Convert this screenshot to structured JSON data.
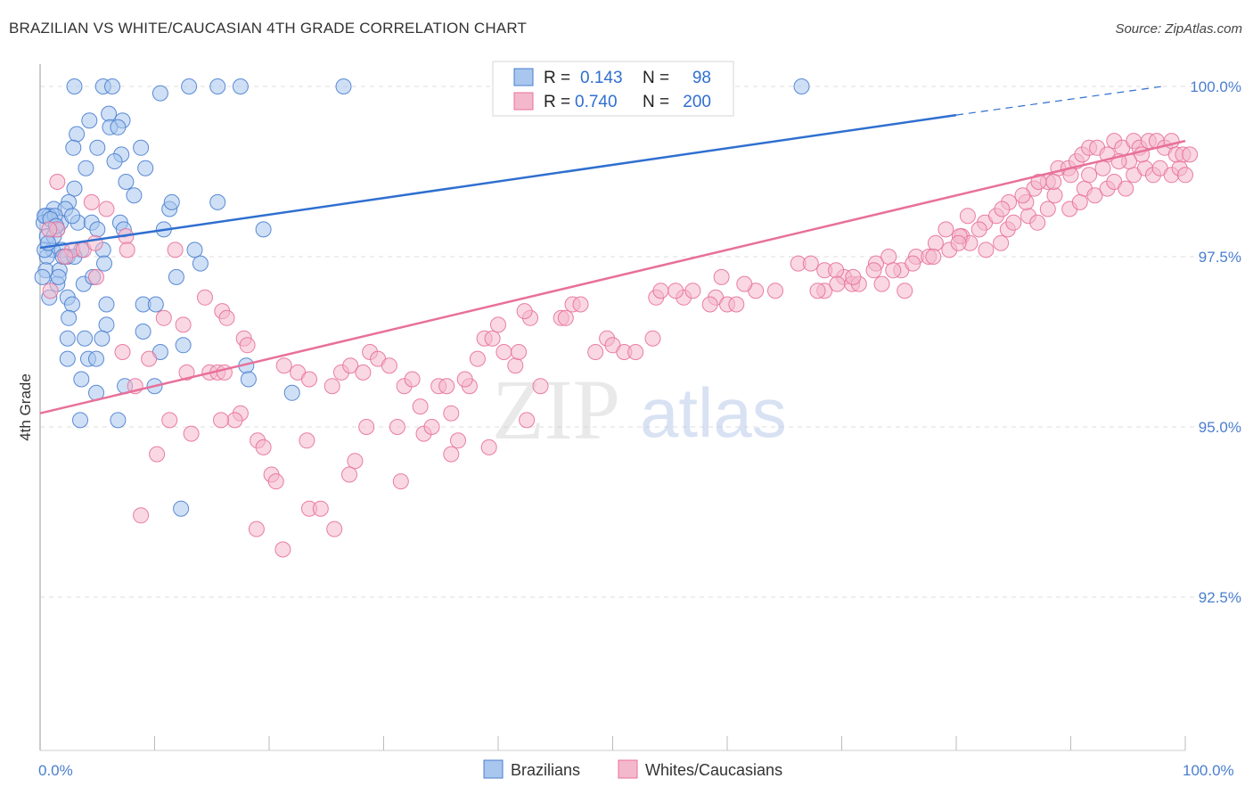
{
  "title": "BRAZILIAN VS WHITE/CAUCASIAN 4TH GRADE CORRELATION CHART",
  "source": "Source: ZipAtlas.com",
  "watermark": {
    "zip": "ZIP",
    "atlas": "atlas"
  },
  "colors": {
    "blue": "#4a7ecf",
    "blue_fill": "#a8c6ee",
    "blue_line": "#2f6fd0",
    "pink": "#e8709a",
    "pink_fill": "#f4b8cc",
    "grid": "#dddddd",
    "axis": "#bbbbbb"
  },
  "legend": {
    "rows": [
      {
        "r_label": "R =",
        "r_value": "0.143",
        "n_label": "N =",
        "n_value": "98"
      },
      {
        "r_label": "R =",
        "r_value": "0.740",
        "n_label": "N =",
        "n_value": "200"
      }
    ]
  },
  "bottom_legend": [
    "Brazilians",
    "Whites/Caucasians"
  ],
  "chart_data": {
    "type": "scatter",
    "title": "BRAZILIAN VS WHITE/CAUCASIAN 4TH GRADE CORRELATION CHART",
    "xlabel": "",
    "ylabel": "4th Grade",
    "xlim": [
      0,
      100
    ],
    "ylim": [
      90.0,
      100.3
    ],
    "x_tick_labels": [
      "0.0%",
      "100.0%"
    ],
    "y_ticks": [
      92.5,
      95.0,
      97.5,
      100.0
    ],
    "y_tick_labels": [
      "92.5%",
      "95.0%",
      "97.5%",
      "100.0%"
    ],
    "grid": true,
    "series": [
      {
        "name": "Brazilians",
        "r": 0.143,
        "n": 98,
        "trend": {
          "x0": 0,
          "y0": 97.63,
          "x1": 80,
          "y1": 99.58,
          "dash_to_x": 98,
          "dash_to_y": 100.0
        },
        "points": [
          [
            3,
            100
          ],
          [
            5.5,
            100
          ],
          [
            6.3,
            100
          ],
          [
            10.5,
            99.9
          ],
          [
            13,
            100
          ],
          [
            15.5,
            100
          ],
          [
            17.5,
            100
          ],
          [
            26.5,
            100
          ],
          [
            66.5,
            100
          ],
          [
            6,
            99.6
          ],
          [
            4.3,
            99.5
          ],
          [
            7.2,
            99.5
          ],
          [
            6.1,
            99.4
          ],
          [
            6.8,
            99.4
          ],
          [
            3.2,
            99.3
          ],
          [
            2.9,
            99.1
          ],
          [
            5,
            99.1
          ],
          [
            8.8,
            99.1
          ],
          [
            7.1,
            99.0
          ],
          [
            6.5,
            98.9
          ],
          [
            4,
            98.8
          ],
          [
            9.2,
            98.8
          ],
          [
            7.5,
            98.6
          ],
          [
            3,
            98.5
          ],
          [
            8.2,
            98.4
          ],
          [
            2.5,
            98.3
          ],
          [
            1.2,
            98.2
          ],
          [
            0.5,
            98.1
          ],
          [
            2.2,
            98.2
          ],
          [
            7,
            98.0
          ],
          [
            11.3,
            98.2
          ],
          [
            11.5,
            98.3
          ],
          [
            15.5,
            98.3
          ],
          [
            0.8,
            98.1
          ],
          [
            0.3,
            98.0
          ],
          [
            1.5,
            97.9
          ],
          [
            1.8,
            98.0
          ],
          [
            3.3,
            98.0
          ],
          [
            4.5,
            98.0
          ],
          [
            5,
            97.9
          ],
          [
            7.3,
            97.9
          ],
          [
            10.8,
            97.9
          ],
          [
            19.5,
            97.9
          ],
          [
            1.1,
            97.6
          ],
          [
            1.9,
            97.6
          ],
          [
            3.6,
            97.6
          ],
          [
            5.5,
            97.6
          ],
          [
            0.6,
            97.5
          ],
          [
            2.4,
            97.5
          ],
          [
            5.6,
            97.4
          ],
          [
            13.5,
            97.6
          ],
          [
            0.5,
            97.3
          ],
          [
            1.7,
            97.3
          ],
          [
            11.9,
            97.2
          ],
          [
            14,
            97.4
          ],
          [
            1.5,
            97.1
          ],
          [
            3.8,
            97.1
          ],
          [
            4.6,
            97.2
          ],
          [
            0.8,
            96.9
          ],
          [
            2.4,
            96.9
          ],
          [
            2.8,
            96.8
          ],
          [
            5.8,
            96.8
          ],
          [
            9,
            96.8
          ],
          [
            10.1,
            96.8
          ],
          [
            2.5,
            96.6
          ],
          [
            5.8,
            96.5
          ],
          [
            9,
            96.4
          ],
          [
            2.4,
            96.3
          ],
          [
            3.9,
            96.3
          ],
          [
            5.4,
            96.3
          ],
          [
            10.5,
            96.1
          ],
          [
            12.5,
            96.2
          ],
          [
            2.4,
            96.0
          ],
          [
            4.2,
            96.0
          ],
          [
            4.9,
            96.0
          ],
          [
            18,
            95.9
          ],
          [
            3.6,
            95.7
          ],
          [
            18.2,
            95.7
          ],
          [
            7.4,
            95.6
          ],
          [
            10,
            95.6
          ],
          [
            4.9,
            95.5
          ],
          [
            22,
            95.5
          ],
          [
            3.5,
            95.1
          ],
          [
            6.8,
            95.1
          ],
          [
            12.3,
            93.8
          ],
          [
            0.2,
            97.2
          ],
          [
            0.4,
            98.1
          ],
          [
            0.6,
            97.8
          ],
          [
            1.3,
            98.1
          ],
          [
            1.6,
            97.2
          ],
          [
            2,
            97.5
          ],
          [
            3,
            97.5
          ],
          [
            0.4,
            97.6
          ],
          [
            2.8,
            98.1
          ],
          [
            1.2,
            97.8
          ],
          [
            0.9,
            98.05
          ],
          [
            1.4,
            97.95
          ],
          [
            0.7,
            97.7
          ]
        ]
      },
      {
        "name": "Whites/Caucasians",
        "r": 0.74,
        "n": 200,
        "trend": {
          "x0": 0,
          "y0": 95.2,
          "x1": 100,
          "y1": 99.2
        },
        "points": [
          [
            1.5,
            98.6
          ],
          [
            4.5,
            98.3
          ],
          [
            5.8,
            98.2
          ],
          [
            1.5,
            97.9
          ],
          [
            0.8,
            97.9
          ],
          [
            2.8,
            97.6
          ],
          [
            3.8,
            97.6
          ],
          [
            4.8,
            97.7
          ],
          [
            7.5,
            97.8
          ],
          [
            7.6,
            97.6
          ],
          [
            11.8,
            97.6
          ],
          [
            2.2,
            97.5
          ],
          [
            0.9,
            97.0
          ],
          [
            4.9,
            97.2
          ],
          [
            14.4,
            96.9
          ],
          [
            15.9,
            96.7
          ],
          [
            16.3,
            96.6
          ],
          [
            10.8,
            96.6
          ],
          [
            12.5,
            96.5
          ],
          [
            7.2,
            96.1
          ],
          [
            17.8,
            96.3
          ],
          [
            18.1,
            96.2
          ],
          [
            9.5,
            96.0
          ],
          [
            14.8,
            95.8
          ],
          [
            15.5,
            95.8
          ],
          [
            16.1,
            95.8
          ],
          [
            12.8,
            95.8
          ],
          [
            21.3,
            95.9
          ],
          [
            22.5,
            95.8
          ],
          [
            23.5,
            95.7
          ],
          [
            8.3,
            95.6
          ],
          [
            17.5,
            95.2
          ],
          [
            17,
            95.1
          ],
          [
            15.8,
            95.1
          ],
          [
            11.3,
            95.1
          ],
          [
            13.2,
            94.9
          ],
          [
            19,
            94.8
          ],
          [
            19.5,
            94.7
          ],
          [
            23.3,
            94.8
          ],
          [
            10.2,
            94.6
          ],
          [
            8.8,
            93.7
          ],
          [
            20.2,
            94.3
          ],
          [
            20.6,
            94.2
          ],
          [
            23.5,
            93.8
          ],
          [
            24.5,
            93.8
          ],
          [
            25.7,
            93.5
          ],
          [
            18.9,
            93.5
          ],
          [
            21.2,
            93.2
          ],
          [
            26.3,
            95.8
          ],
          [
            27.1,
            95.9
          ],
          [
            28.8,
            96.1
          ],
          [
            29.5,
            96.0
          ],
          [
            30.5,
            95.9
          ],
          [
            28.2,
            95.8
          ],
          [
            25.5,
            95.6
          ],
          [
            31.8,
            95.6
          ],
          [
            32.5,
            95.7
          ],
          [
            34.8,
            95.6
          ],
          [
            35.5,
            95.6
          ],
          [
            37.5,
            95.6
          ],
          [
            37.1,
            95.7
          ],
          [
            33.2,
            95.3
          ],
          [
            35.9,
            95.2
          ],
          [
            28.5,
            95.0
          ],
          [
            31.2,
            95.0
          ],
          [
            33.5,
            94.9
          ],
          [
            34.2,
            95.0
          ],
          [
            36.5,
            94.8
          ],
          [
            27.5,
            94.5
          ],
          [
            27,
            94.3
          ],
          [
            35.9,
            94.6
          ],
          [
            31.5,
            94.2
          ],
          [
            39.2,
            94.7
          ],
          [
            42.5,
            95.1
          ],
          [
            38.2,
            96.0
          ],
          [
            40.5,
            96.1
          ],
          [
            41.5,
            95.9
          ],
          [
            41.8,
            96.1
          ],
          [
            43.7,
            95.6
          ],
          [
            38.8,
            96.3
          ],
          [
            39.5,
            96.3
          ],
          [
            40,
            96.5
          ],
          [
            42.8,
            96.6
          ],
          [
            42.3,
            96.7
          ],
          [
            45.5,
            96.6
          ],
          [
            45.9,
            96.6
          ],
          [
            46.5,
            96.8
          ],
          [
            47.2,
            96.8
          ],
          [
            48.5,
            96.1
          ],
          [
            49.5,
            96.3
          ],
          [
            50,
            96.2
          ],
          [
            51,
            96.1
          ],
          [
            52,
            96.1
          ],
          [
            53.5,
            96.3
          ],
          [
            53.8,
            96.9
          ],
          [
            54.2,
            97.0
          ],
          [
            56.2,
            96.9
          ],
          [
            59,
            96.9
          ],
          [
            59.5,
            97.2
          ],
          [
            60,
            96.8
          ],
          [
            60.8,
            96.8
          ],
          [
            62.5,
            97.0
          ],
          [
            64.2,
            97.0
          ],
          [
            61.5,
            97.1
          ],
          [
            55.5,
            97.0
          ],
          [
            57,
            97.0
          ],
          [
            58.5,
            96.8
          ],
          [
            68.5,
            97.0
          ],
          [
            70.2,
            97.2
          ],
          [
            70.9,
            97.1
          ],
          [
            71.5,
            97.1
          ],
          [
            73,
            97.4
          ],
          [
            74.1,
            97.5
          ],
          [
            75.2,
            97.3
          ],
          [
            76.5,
            97.5
          ],
          [
            78.2,
            97.7
          ],
          [
            79.4,
            97.6
          ],
          [
            80.5,
            97.8
          ],
          [
            81.2,
            97.7
          ],
          [
            82.6,
            97.6
          ],
          [
            83.9,
            97.7
          ],
          [
            84.5,
            97.9
          ],
          [
            85,
            98.0
          ],
          [
            86.3,
            98.1
          ],
          [
            87.1,
            98.0
          ],
          [
            88,
            98.2
          ],
          [
            88.6,
            98.4
          ],
          [
            89.9,
            98.2
          ],
          [
            90.8,
            98.3
          ],
          [
            91.2,
            98.5
          ],
          [
            92.1,
            98.4
          ],
          [
            93.2,
            98.5
          ],
          [
            93.8,
            98.6
          ],
          [
            94.8,
            98.5
          ],
          [
            95.5,
            98.7
          ],
          [
            96.5,
            98.8
          ],
          [
            97.2,
            98.7
          ],
          [
            97.8,
            98.8
          ],
          [
            98.8,
            98.7
          ],
          [
            99.5,
            98.8
          ],
          [
            100,
            98.7
          ],
          [
            66.2,
            97.4
          ],
          [
            67.3,
            97.4
          ],
          [
            68.5,
            97.3
          ],
          [
            69.5,
            97.3
          ],
          [
            73.5,
            97.1
          ],
          [
            75.5,
            97.0
          ],
          [
            77.6,
            97.5
          ],
          [
            79.1,
            97.9
          ],
          [
            80.3,
            97.8
          ],
          [
            81,
            98.1
          ],
          [
            82.5,
            98.0
          ],
          [
            83.5,
            98.1
          ],
          [
            84.6,
            98.3
          ],
          [
            86.1,
            98.3
          ],
          [
            86.8,
            98.5
          ],
          [
            88,
            98.6
          ],
          [
            88.9,
            98.8
          ],
          [
            89.8,
            98.8
          ],
          [
            90.5,
            98.9
          ],
          [
            91,
            99.0
          ],
          [
            91.6,
            99.1
          ],
          [
            92.3,
            99.1
          ],
          [
            93.2,
            99.0
          ],
          [
            93.8,
            99.2
          ],
          [
            94.5,
            99.1
          ],
          [
            95.5,
            99.2
          ],
          [
            96,
            99.1
          ],
          [
            96.8,
            99.2
          ],
          [
            97.5,
            99.2
          ],
          [
            98.2,
            99.1
          ],
          [
            98.8,
            99.2
          ],
          [
            99.2,
            99.0
          ],
          [
            99.8,
            99.0
          ],
          [
            100.4,
            99.0
          ],
          [
            96.2,
            99.0
          ],
          [
            95.1,
            98.9
          ],
          [
            94.2,
            98.9
          ],
          [
            92.8,
            98.8
          ],
          [
            91.6,
            98.7
          ],
          [
            90,
            98.7
          ],
          [
            88.5,
            98.6
          ],
          [
            87.2,
            98.6
          ],
          [
            85.8,
            98.4
          ],
          [
            84,
            98.2
          ],
          [
            82,
            97.9
          ],
          [
            80.2,
            97.7
          ],
          [
            78,
            97.5
          ],
          [
            76.2,
            97.4
          ],
          [
            74.5,
            97.3
          ],
          [
            72.8,
            97.3
          ],
          [
            71,
            97.2
          ],
          [
            69.6,
            97.1
          ],
          [
            67.9,
            97.0
          ]
        ]
      }
    ]
  }
}
